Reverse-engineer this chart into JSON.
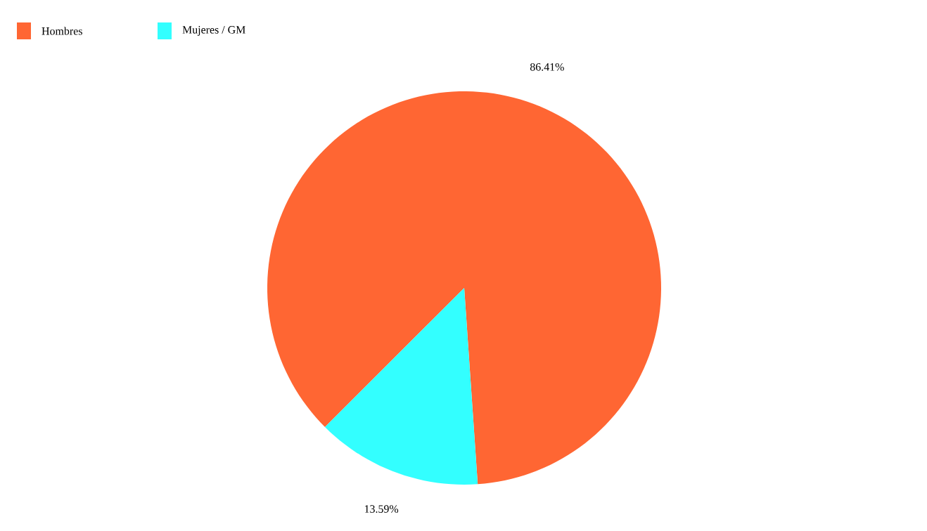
{
  "chart_data": {
    "type": "pie",
    "categories": [
      "Hombres",
      "Mujeres / GM"
    ],
    "values": [
      86.41,
      13.59
    ],
    "colors": [
      "#ff6633",
      "#33ffff"
    ],
    "value_labels": [
      "86.41%",
      "13.59%"
    ],
    "legend": "top left"
  }
}
